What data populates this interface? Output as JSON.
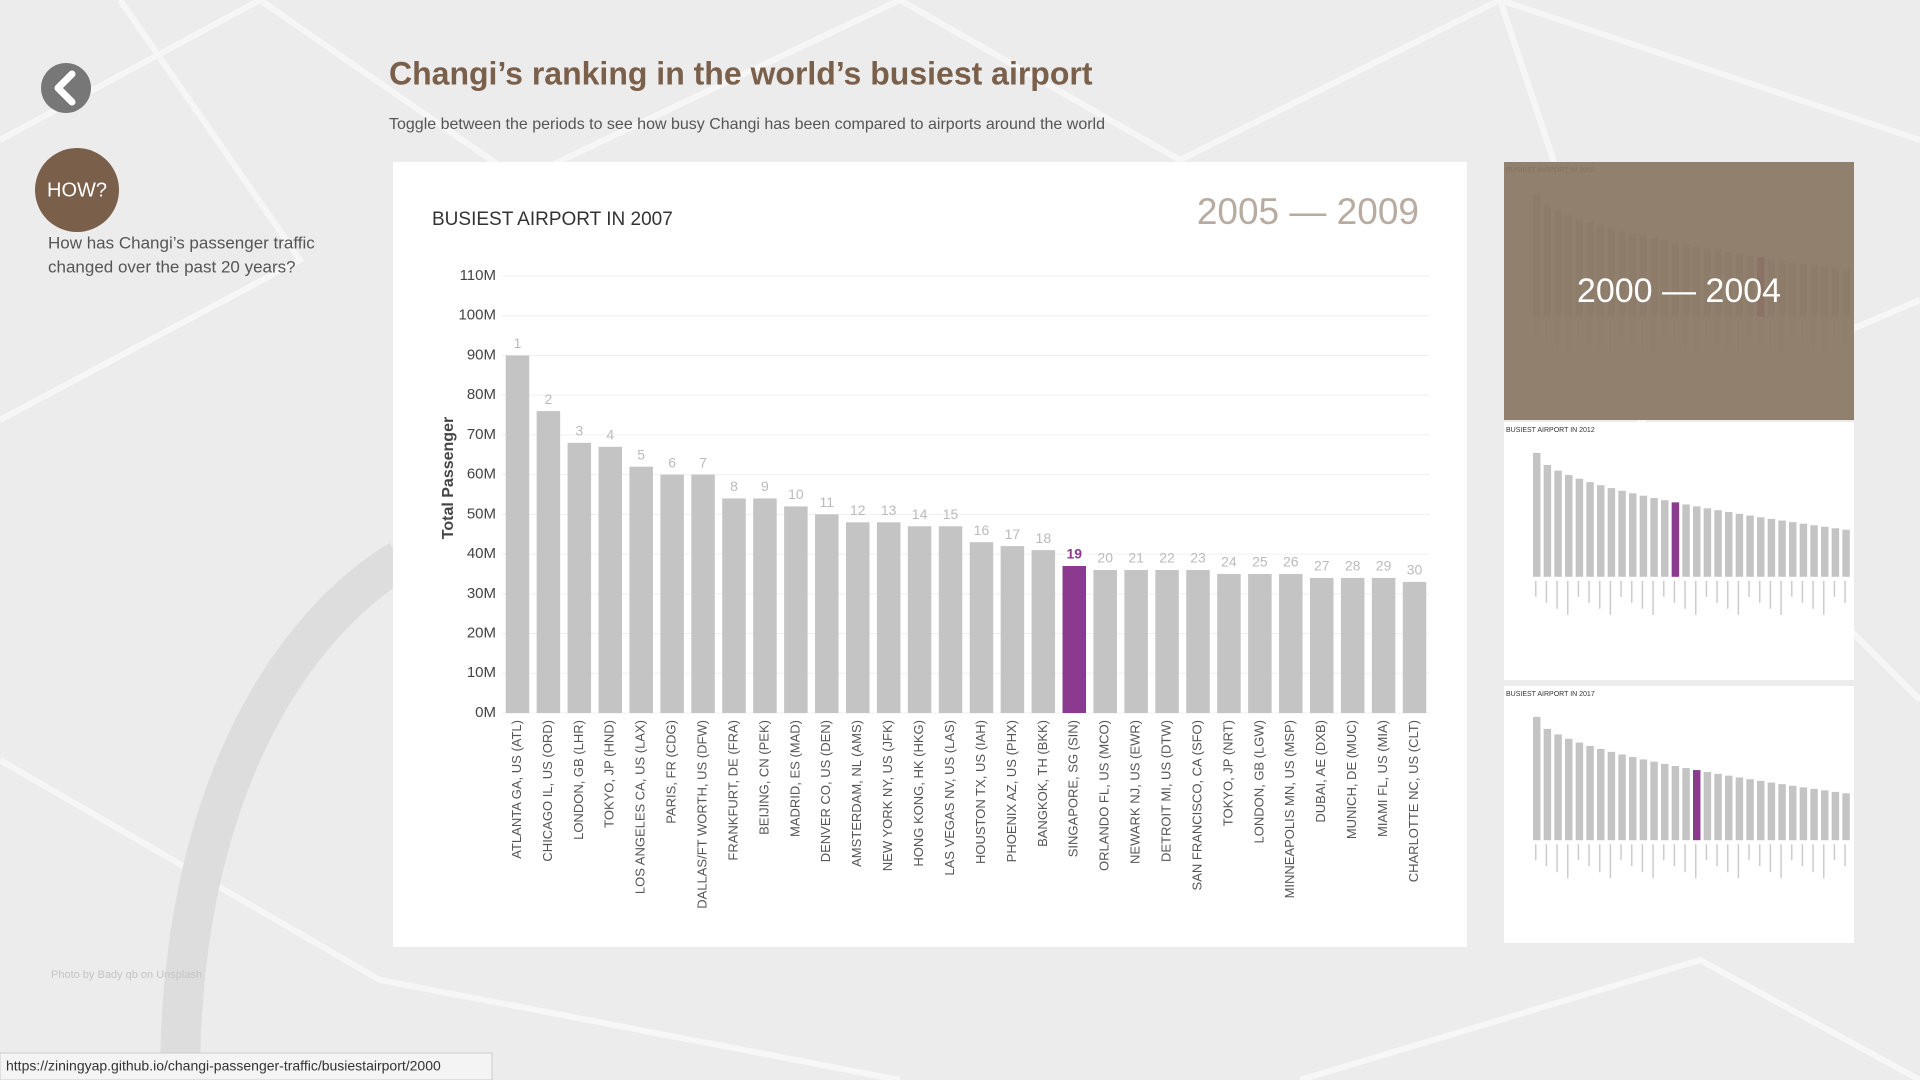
{
  "page": {
    "title": "Changi’s ranking in the world’s busiest airport",
    "subtitle": "Toggle between the periods to see how busy Changi has been compared to airports around the world",
    "how_button": "HOW?",
    "how_question": [
      "How has Changi’s passenger traffic",
      "changed over the past 20 years?"
    ],
    "period": "2005 — 2009",
    "thumbnails": [
      {
        "title": "BUSIEST AIRPORT IN 2002",
        "period": "2000 — 2004"
      },
      {
        "title": "BUSIEST AIRPORT IN 2012"
      },
      {
        "title": "BUSIEST AIRPORT IN 2017"
      }
    ],
    "photo_credit": "Photo by Bady qb on Unsplash",
    "status_url": "https://ziningyap.github.io/changi-passenger-traffic/busiestairport/2000"
  },
  "chart_data": {
    "type": "bar",
    "title": "BUSIEST AIRPORT IN 2007",
    "y_label": "Total Passenger",
    "categories": [
      "ATLANTA GA, US (ATL)",
      "CHICAGO IL, US (ORD)",
      "LONDON, GB (LHR)",
      "TOKYO, JP (HND)",
      "LOS ANGELES CA, US (LAX)",
      "PARIS, FR (CDG)",
      "DALLAS/FT WORTH, US (DFW)",
      "FRANKFURT, DE (FRA)",
      "BEIJING, CN (PEK)",
      "MADRID, ES (MAD)",
      "DENVER CO, US (DEN)",
      "AMSTERDAM, NL (AMS)",
      "NEW YORK NY, US (JFK)",
      "HONG KONG, HK (HKG)",
      "LAS VEGAS NV, US (LAS)",
      "HOUSTON TX, US (IAH)",
      "PHOENIX AZ, US (PHX)",
      "BANGKOK, TH (BKK)",
      "SINGAPORE, SG (SIN)",
      "ORLANDO FL, US (MCO)",
      "NEWARK NJ, US (EWR)",
      "DETROIT MI, US (DTW)",
      "SAN FRANCISCO, CA (SFO)",
      "TOKYO, JP (NRT)",
      "LONDON, GB (LGW)",
      "MINNEAPOLIS MN, US (MSP)",
      "DUBAI, AE (DXB)",
      "MUNICH, DE (MUC)",
      "MIAMI FL, US (MIA)",
      "CHARLOTTE NC, US (CLT)"
    ],
    "values": [
      90,
      76,
      68,
      67,
      62,
      60,
      60,
      54,
      54,
      52,
      50,
      48,
      48,
      47,
      47,
      43,
      42,
      41,
      37,
      36,
      36,
      36,
      36,
      35,
      35,
      35,
      34,
      34,
      34,
      33
    ],
    "ranks": [
      1,
      2,
      3,
      4,
      5,
      6,
      7,
      8,
      9,
      10,
      11,
      12,
      13,
      14,
      15,
      16,
      17,
      18,
      19,
      20,
      21,
      22,
      23,
      24,
      25,
      26,
      27,
      28,
      29,
      30
    ],
    "color": "#c4c4c4",
    "highlight_category": "SINGAPORE, SG (SIN)",
    "highlight_color": "#8b3a8f",
    "ylim": [
      0,
      110
    ],
    "yticks": [
      {
        "value": 0,
        "label": "0M"
      },
      {
        "value": 10,
        "label": "10M"
      },
      {
        "value": 20,
        "label": "20M"
      },
      {
        "value": 30,
        "label": "30M"
      },
      {
        "value": 40,
        "label": "40M"
      },
      {
        "value": 50,
        "label": "50M"
      },
      {
        "value": 60,
        "label": "60M"
      },
      {
        "value": 70,
        "label": "70M"
      },
      {
        "value": 80,
        "label": "80M"
      },
      {
        "value": 90,
        "label": "90M"
      },
      {
        "value": 100,
        "label": "100M"
      },
      {
        "value": 110,
        "label": "110M"
      }
    ],
    "grid": true
  }
}
